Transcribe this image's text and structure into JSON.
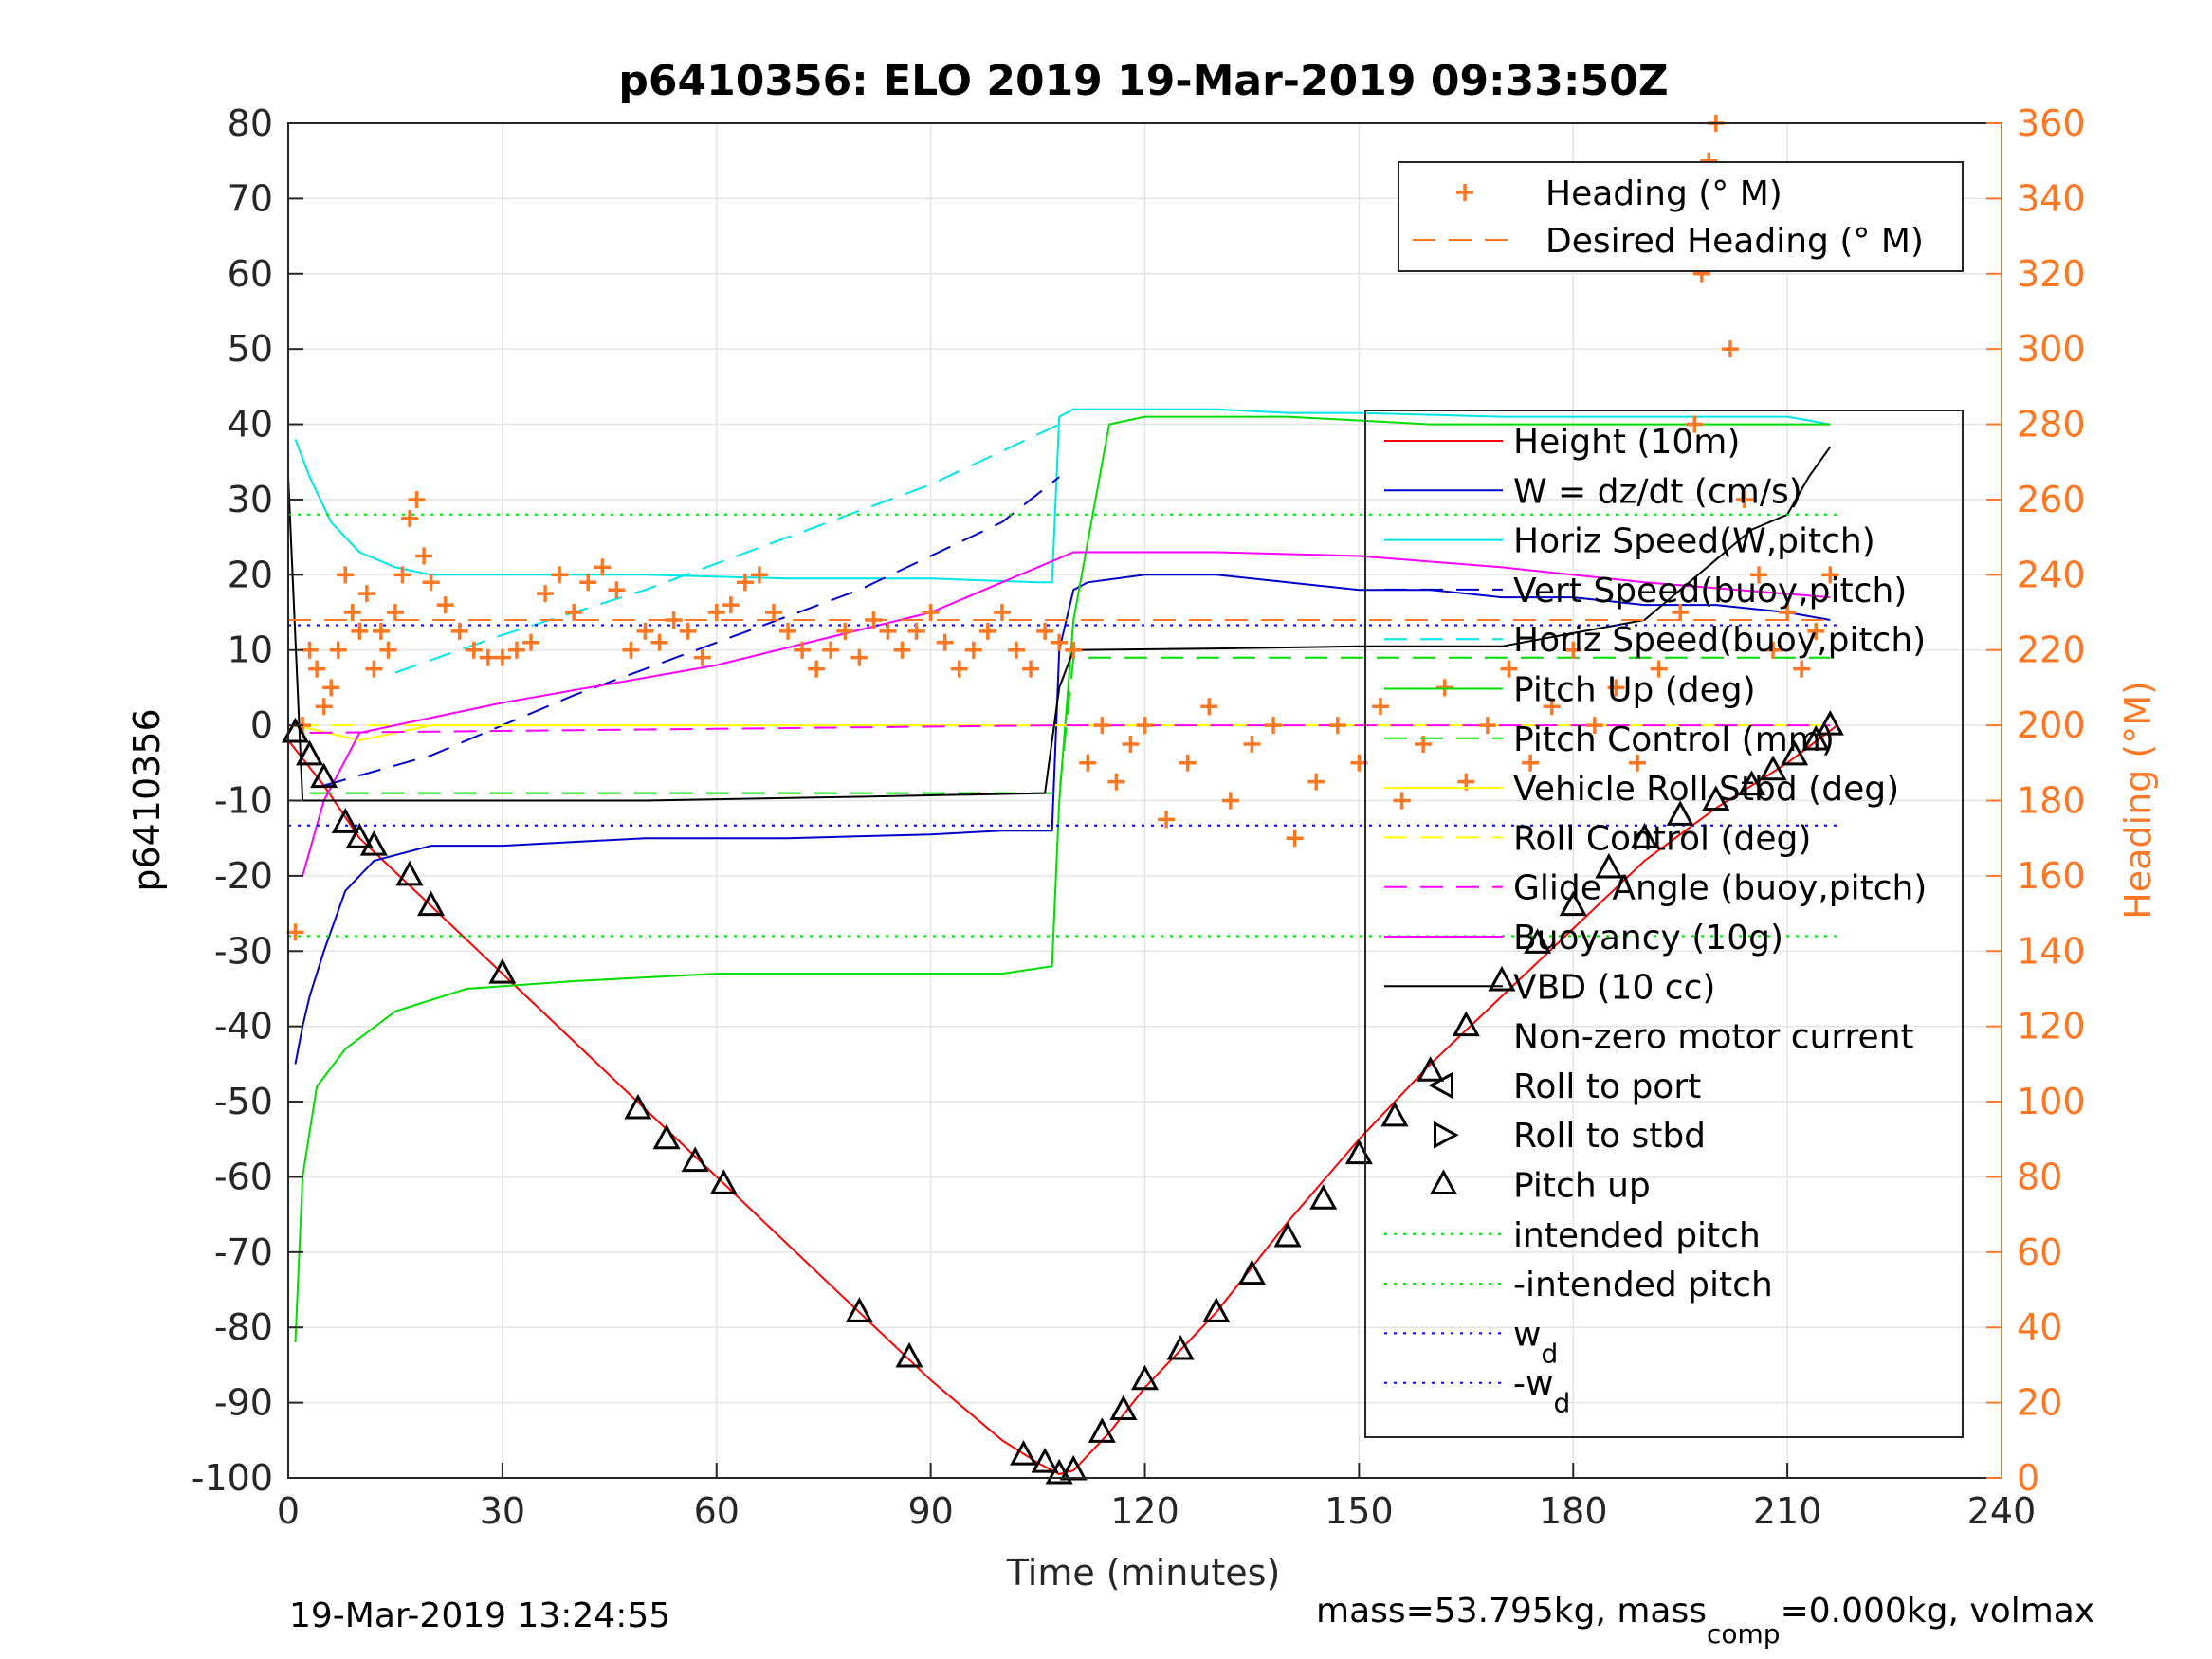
{
  "chart_data": {
    "type": "line",
    "title": "p6410356: ELO 2019 19-Mar-2019 09:33:50Z",
    "xlabel": "Time (minutes)",
    "ylabel": "p6410356",
    "y2label": "Heading (°M)",
    "xlim": [
      0,
      240
    ],
    "ylim": [
      -100,
      80
    ],
    "y2lim": [
      0,
      360
    ],
    "xticks": [
      0,
      30,
      60,
      90,
      120,
      150,
      180,
      210,
      240
    ],
    "yticks": [
      -100,
      -90,
      -80,
      -70,
      -60,
      -50,
      -40,
      -30,
      -20,
      -10,
      0,
      10,
      20,
      30,
      40,
      50,
      60,
      70,
      80
    ],
    "y2ticks": [
      0,
      20,
      40,
      60,
      80,
      100,
      120,
      140,
      160,
      180,
      200,
      220,
      240,
      260,
      280,
      300,
      320,
      340,
      360
    ],
    "grid": true,
    "footer_left": "19-Mar-2019 13:24:55",
    "footer_right": {
      "a": "mass=53.795kg, mass",
      "sub": "comp",
      "b": "=0.000kg, volmax"
    },
    "legend_heading": [
      {
        "label": "Heading (° M)",
        "color": "#ff7722",
        "style": "plus"
      },
      {
        "label": "Desired Heading (° M)",
        "color": "#ff7722",
        "style": "dash"
      }
    ],
    "legend_main": [
      {
        "label": "Height (10m)",
        "color": "#ff0000",
        "style": "solid"
      },
      {
        "label": "W = dz/dt (cm/s)",
        "color": "#0000cc",
        "style": "solid"
      },
      {
        "label": "Horiz Speed(W,pitch)",
        "color": "#00e5e5",
        "style": "solid"
      },
      {
        "label": "Vert Speed(buoy,pitch)",
        "color": "#0000cc",
        "style": "dash"
      },
      {
        "label": "Horiz Speed(buoy,pitch)",
        "color": "#00e5e5",
        "style": "dash"
      },
      {
        "label": "Pitch Up (deg)",
        "color": "#00dd00",
        "style": "solid"
      },
      {
        "label": "Pitch Control (mm)",
        "color": "#00dd00",
        "style": "dash"
      },
      {
        "label": "Vehicle Roll Stbd (deg)",
        "color": "#ffff00",
        "style": "solid"
      },
      {
        "label": "Roll Control (deg)",
        "color": "#ffff00",
        "style": "dash"
      },
      {
        "label": "Glide Angle (buoy,pitch)",
        "color": "#ff00ff",
        "style": "dash"
      },
      {
        "label": "Buoyancy (10g)",
        "color": "#ff00ff",
        "style": "solid"
      },
      {
        "label": "VBD (10 cc)",
        "color": "#000000",
        "style": "solid"
      },
      {
        "label": "Non-zero motor current",
        "color": "#000000",
        "style": "none"
      },
      {
        "label": "Roll to port",
        "color": "#000000",
        "style": "tri-left"
      },
      {
        "label": "Roll to stbd",
        "color": "#000000",
        "style": "tri-right"
      },
      {
        "label": "Pitch up",
        "color": "#000000",
        "style": "tri-up"
      },
      {
        "label": "intended pitch",
        "color": "#00dd00",
        "style": "dot"
      },
      {
        "label": "-intended pitch",
        "color": "#00dd00",
        "style": "dot"
      },
      {
        "label": "w",
        "sub": "d",
        "color": "#0000ff",
        "style": "dot"
      },
      {
        "label": "-w",
        "sub": "d",
        "color": "#0000ff",
        "style": "dot"
      }
    ],
    "series": [
      {
        "name": "Height (10m)",
        "axis": "left",
        "color": "#ff0000",
        "style": "solid",
        "x": [
          0,
          5,
          10,
          20,
          30,
          40,
          50,
          60,
          70,
          80,
          90,
          100,
          105,
          108,
          110,
          115,
          120,
          130,
          140,
          150,
          160,
          170,
          180,
          190,
          200,
          210,
          217
        ],
        "y": [
          -2,
          -8,
          -15,
          -24,
          -33,
          -42,
          -51,
          -60,
          -69,
          -78,
          -87,
          -95,
          -98,
          -99.5,
          -99,
          -94,
          -88,
          -78,
          -66,
          -55,
          -45,
          -36,
          -27,
          -18,
          -11,
          -5,
          0
        ]
      },
      {
        "name": "W = dz/dt (cm/s)",
        "axis": "left",
        "color": "#0000cc",
        "style": "solid",
        "x": [
          1,
          2,
          3,
          5,
          8,
          12,
          20,
          30,
          50,
          70,
          90,
          100,
          105,
          107,
          108,
          110,
          112,
          120,
          130,
          140,
          150,
          160,
          170,
          180,
          190,
          200,
          210,
          216
        ],
        "y": [
          -45,
          -40,
          -36,
          -30,
          -22,
          -18,
          -16,
          -16,
          -15,
          -15,
          -14.5,
          -14,
          -14,
          -14,
          10,
          18,
          19,
          20,
          20,
          19,
          18,
          18,
          17,
          17,
          16,
          16,
          15,
          14
        ]
      },
      {
        "name": "Horiz Speed(W,pitch)",
        "axis": "left",
        "color": "#00e5e5",
        "style": "solid",
        "x": [
          1,
          3,
          6,
          10,
          15,
          20,
          30,
          50,
          70,
          90,
          105,
          107,
          108,
          110,
          120,
          130,
          140,
          150,
          170,
          190,
          200,
          210,
          216
        ],
        "y": [
          38,
          33,
          27,
          23,
          21,
          20,
          20,
          20,
          19.5,
          19.5,
          19,
          19,
          41,
          42,
          42,
          42,
          41.5,
          41.5,
          41,
          41,
          41,
          41,
          40
        ]
      },
      {
        "name": "Vert Speed(buoy,pitch)",
        "axis": "left",
        "color": "#0000cc",
        "style": "dash",
        "x": [
          5,
          20,
          40,
          60,
          80,
          100,
          108
        ],
        "y": [
          -8,
          -4,
          4,
          11,
          18,
          27,
          33
        ]
      },
      {
        "name": "Horiz Speed(buoy,pitch)",
        "axis": "left",
        "color": "#00e5e5",
        "style": "dash",
        "x": [
          15,
          30,
          50,
          70,
          90,
          108
        ],
        "y": [
          7,
          12,
          18,
          25,
          32,
          40
        ]
      },
      {
        "name": "Pitch Up (deg)",
        "axis": "left",
        "color": "#00dd00",
        "style": "solid",
        "x": [
          1,
          2,
          4,
          8,
          15,
          25,
          40,
          60,
          80,
          100,
          107,
          108,
          110,
          115,
          120,
          140,
          160,
          180,
          200,
          210,
          216
        ],
        "y": [
          -82,
          -60,
          -48,
          -43,
          -38,
          -35,
          -34,
          -33,
          -33,
          -33,
          -32,
          -10,
          14,
          40,
          41,
          41,
          40,
          40,
          40,
          40,
          40
        ]
      },
      {
        "name": "Pitch Control (mm)",
        "axis": "left",
        "color": "#00dd00",
        "style": "dash",
        "x": [
          3,
          50,
          108,
          110,
          216
        ],
        "y": [
          -9,
          -9,
          -9,
          9,
          9
        ]
      },
      {
        "name": "Vehicle Roll Stbd (deg)",
        "axis": "left",
        "color": "#ffff00",
        "style": "solid",
        "x": [
          1,
          10,
          20,
          40,
          60,
          80,
          100,
          108,
          120,
          140,
          160,
          180,
          200,
          216
        ],
        "y": [
          0,
          -2,
          0,
          0,
          0,
          0,
          0,
          0,
          0,
          0,
          0,
          0,
          0,
          0
        ]
      },
      {
        "name": "Roll Control (deg)",
        "axis": "left",
        "color": "#ffff00",
        "style": "dash",
        "x": [
          1,
          216
        ],
        "y": [
          0,
          0
        ]
      },
      {
        "name": "Glide Angle (buoy,pitch)",
        "axis": "left",
        "color": "#ff00ff",
        "style": "dash",
        "x": [
          3,
          108,
          216
        ],
        "y": [
          -1,
          0,
          0
        ]
      },
      {
        "name": "Buoyancy (10g)",
        "axis": "left",
        "color": "#ff00ff",
        "style": "solid",
        "x": [
          2,
          5,
          10,
          30,
          60,
          90,
          110,
          130,
          150,
          170,
          190,
          216
        ],
        "y": [
          -20,
          -10,
          -1,
          3,
          8,
          15,
          23,
          23,
          22.5,
          21,
          19,
          17
        ]
      },
      {
        "name": "VBD (10 cc)",
        "axis": "left",
        "color": "#000000",
        "style": "solid",
        "x": [
          0,
          2,
          50,
          80,
          106,
          108,
          110,
          130,
          150,
          170,
          190,
          200,
          205,
          210,
          213,
          216
        ],
        "y": [
          33,
          -10,
          -10,
          -9.5,
          -9,
          5,
          10,
          10.2,
          10.5,
          10.5,
          14,
          22,
          26,
          28,
          33,
          37
        ]
      },
      {
        "name": "intended pitch",
        "axis": "left",
        "color": "#00dd00",
        "style": "dot",
        "x": [
          0,
          217
        ],
        "y": [
          28,
          28
        ]
      },
      {
        "name": "-intended pitch",
        "axis": "left",
        "color": "#00dd00",
        "style": "dot",
        "x": [
          0,
          217
        ],
        "y": [
          -28,
          -28
        ]
      },
      {
        "name": "w_d",
        "axis": "left",
        "color": "#0000ff",
        "style": "dot",
        "x": [
          0,
          217
        ],
        "y": [
          13.3,
          13.3
        ]
      },
      {
        "name": "-w_d",
        "axis": "left",
        "color": "#0000ff",
        "style": "dot",
        "x": [
          0,
          217
        ],
        "y": [
          -13.3,
          -13.3
        ]
      },
      {
        "name": "Desired Heading (° M)",
        "axis": "right",
        "color": "#ff7722",
        "style": "dash",
        "x": [
          0,
          217
        ],
        "y": [
          228,
          228
        ]
      }
    ],
    "heading_points": {
      "x": [
        1,
        2,
        3,
        4,
        5,
        6,
        7,
        8,
        9,
        10,
        11,
        12,
        13,
        14,
        15,
        16,
        17,
        18,
        19,
        20,
        22,
        24,
        26,
        28,
        30,
        32,
        34,
        36,
        38,
        40,
        42,
        44,
        46,
        48,
        50,
        52,
        54,
        56,
        58,
        60,
        62,
        64,
        66,
        68,
        70,
        72,
        74,
        76,
        78,
        80,
        82,
        84,
        86,
        88,
        90,
        92,
        94,
        96,
        98,
        100,
        102,
        104,
        106,
        108,
        110,
        112,
        114,
        116,
        118,
        120,
        123,
        126,
        129,
        132,
        135,
        138,
        141,
        144,
        147,
        150,
        153,
        156,
        159,
        162,
        165,
        168,
        171,
        174,
        177,
        180,
        183,
        186,
        189,
        192,
        195,
        197,
        198,
        199,
        200,
        202,
        204,
        206,
        208,
        210,
        212,
        214,
        216
      ],
      "y": [
        145,
        200,
        220,
        215,
        205,
        210,
        220,
        240,
        230,
        225,
        235,
        215,
        225,
        220,
        230,
        240,
        255,
        260,
        245,
        238,
        232,
        225,
        220,
        218,
        218,
        220,
        222,
        235,
        240,
        230,
        238,
        242,
        236,
        220,
        225,
        222,
        228,
        225,
        218,
        230,
        232,
        238,
        240,
        230,
        225,
        220,
        215,
        220,
        225,
        218,
        228,
        225,
        220,
        225,
        230,
        222,
        215,
        220,
        225,
        230,
        220,
        215,
        225,
        222,
        220,
        190,
        200,
        185,
        195,
        200,
        175,
        190,
        205,
        180,
        195,
        200,
        170,
        185,
        200,
        190,
        205,
        180,
        195,
        210,
        185,
        200,
        215,
        190,
        205,
        220,
        200,
        210,
        190,
        215,
        230,
        280,
        320,
        350,
        360,
        300,
        260,
        240,
        220,
        230,
        215,
        225,
        240
      ]
    },
    "markers": {
      "pitch_up": {
        "x": [
          1,
          3,
          5,
          8,
          10,
          12,
          17,
          20,
          30,
          49,
          53,
          57,
          61,
          80,
          87,
          103,
          106,
          108,
          110,
          114,
          117,
          120,
          125,
          130,
          135,
          140,
          145,
          150,
          155,
          160,
          165,
          170,
          175,
          180,
          185,
          190,
          195,
          200,
          205,
          208,
          211,
          214,
          216
        ],
        "y": [
          -1,
          -4,
          -7,
          -13,
          -15,
          -16,
          -20,
          -24,
          -33,
          -51,
          -55,
          -58,
          -61,
          -78,
          -84,
          -97,
          -98,
          -99.5,
          -99,
          -94,
          -91,
          -87,
          -83,
          -78,
          -73,
          -68,
          -63,
          -57,
          -52,
          -46,
          -40,
          -34,
          -29,
          -24,
          -19,
          -15,
          -12,
          -10,
          -8,
          -6,
          -4,
          -2,
          0
        ]
      }
    }
  }
}
